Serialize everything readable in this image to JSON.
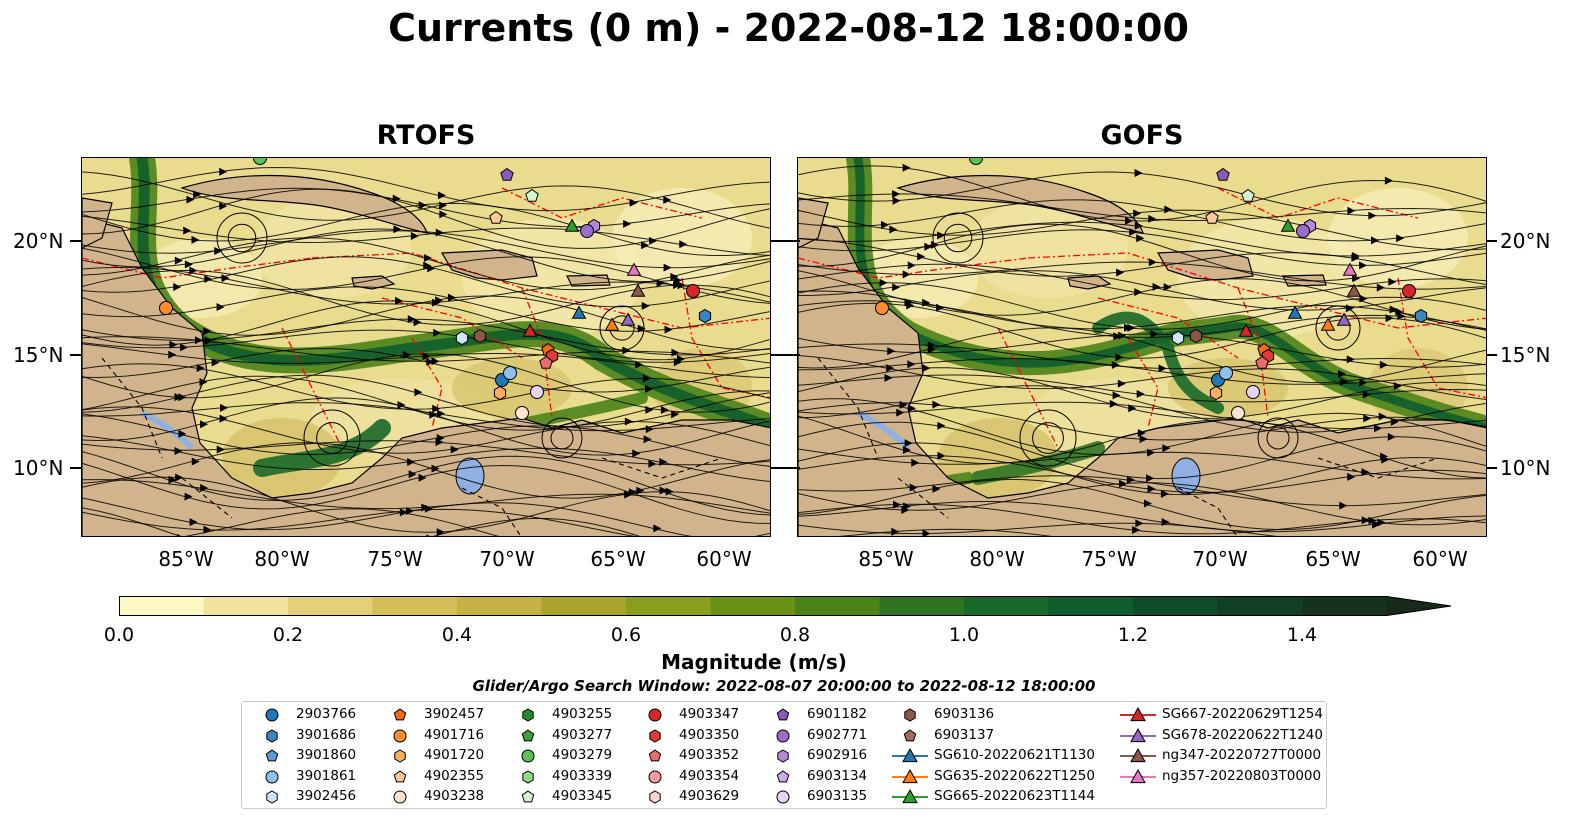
{
  "title": "Currents (0 m) - 2022-08-12 18:00:00",
  "panels": [
    {
      "title": "RTOFS"
    },
    {
      "title": "GOFS"
    }
  ],
  "axes": {
    "y_labels": [
      "20°N",
      "15°N",
      "10°N"
    ],
    "x_labels": [
      "85°W",
      "80°W",
      "75°W",
      "70°W",
      "65°W",
      "60°W"
    ]
  },
  "colorbar": {
    "label": "Magnitude (m/s)",
    "ticks": [
      "0.0",
      "0.2",
      "0.4",
      "0.6",
      "0.8",
      "1.0",
      "1.2",
      "1.4"
    ],
    "range": [
      0.0,
      1.5
    ],
    "extend": "max",
    "colors": [
      "#fdf8c4",
      "#f1e39c",
      "#e3cf7a",
      "#d5bd5a",
      "#c6b243",
      "#a8a52a",
      "#8a9d1c",
      "#6b9016",
      "#4b8318",
      "#2f7422",
      "#186829",
      "#0f5d2c",
      "#0f4d2a",
      "#123f25",
      "#15321f",
      "#162a1b"
    ]
  },
  "search_window": "Glider/Argo Search Window: 2022-08-07 20:00:00 to 2022-08-12 18:00:00",
  "legend": [
    {
      "label": "2903766",
      "marker": "circle",
      "color": "#1f77b4"
    },
    {
      "label": "3901686",
      "marker": "hexagon",
      "color": "#3a86c2"
    },
    {
      "label": "3901860",
      "marker": "pentagon",
      "color": "#5a9bd5"
    },
    {
      "label": "3901861",
      "marker": "circle",
      "color": "#8ec2ea"
    },
    {
      "label": "3902456",
      "marker": "hexagon",
      "color": "#cfe6fa"
    },
    {
      "label": "3902457",
      "marker": "pentagon",
      "color": "#f26b0f"
    },
    {
      "label": "4901716",
      "marker": "circle",
      "color": "#ff8c2e"
    },
    {
      "label": "4901720",
      "marker": "hexagon",
      "color": "#fdae62"
    },
    {
      "label": "4902355",
      "marker": "pentagon",
      "color": "#fdc99a"
    },
    {
      "label": "4903238",
      "marker": "circle",
      "color": "#fde6cf"
    },
    {
      "label": "4903255",
      "marker": "hexagon",
      "color": "#238b2f"
    },
    {
      "label": "4903277",
      "marker": "pentagon",
      "color": "#3aa13d"
    },
    {
      "label": "4903279",
      "marker": "circle",
      "color": "#5cc157"
    },
    {
      "label": "4903339",
      "marker": "hexagon",
      "color": "#8fd98a"
    },
    {
      "label": "4903345",
      "marker": "pentagon",
      "color": "#d4f5cf"
    },
    {
      "label": "4903347",
      "marker": "circle",
      "color": "#d62728"
    },
    {
      "label": "4903350",
      "marker": "hexagon",
      "color": "#e0393a"
    },
    {
      "label": "4903352",
      "marker": "pentagon",
      "color": "#ec6b6b"
    },
    {
      "label": "4903354",
      "marker": "circle",
      "color": "#f59b9b"
    },
    {
      "label": "4903629",
      "marker": "hexagon",
      "color": "#fdd2d2"
    },
    {
      "label": "6901182",
      "marker": "pentagon",
      "color": "#8a5ab9"
    },
    {
      "label": "6902771",
      "marker": "circle",
      "color": "#9b6cc9"
    },
    {
      "label": "6902916",
      "marker": "hexagon",
      "color": "#b08ad8"
    },
    {
      "label": "6903134",
      "marker": "pentagon",
      "color": "#cbb0e8"
    },
    {
      "label": "6903135",
      "marker": "circle",
      "color": "#e6d4f6"
    },
    {
      "label": "6903136",
      "marker": "hexagon",
      "color": "#8c564b"
    },
    {
      "label": "6903137",
      "marker": "pentagon",
      "color": "#a46b5b"
    },
    {
      "label": "SG610-20220621T1130",
      "marker": "triangle-line",
      "color": "#1f77b4"
    },
    {
      "label": "SG635-20220622T1250",
      "marker": "triangle-line",
      "color": "#ff7f0e"
    },
    {
      "label": "SG665-20220623T1144",
      "marker": "triangle-line",
      "color": "#2ca02c"
    },
    {
      "label": "SG667-20220629T1254",
      "marker": "triangle-line",
      "color": "#d62728"
    },
    {
      "label": "SG678-20220622T1240",
      "marker": "triangle-line",
      "color": "#9467bd"
    },
    {
      "label": "ng347-20220727T0000",
      "marker": "triangle-line",
      "color": "#8c564b"
    },
    {
      "label": "ng357-20220803T0000",
      "marker": "triangle-line",
      "color": "#e377c2"
    }
  ],
  "map_colors": {
    "land": "#d2b48c",
    "lake": "#8fb0e0",
    "eez": "#ff0000",
    "streamline": "#000000"
  }
}
